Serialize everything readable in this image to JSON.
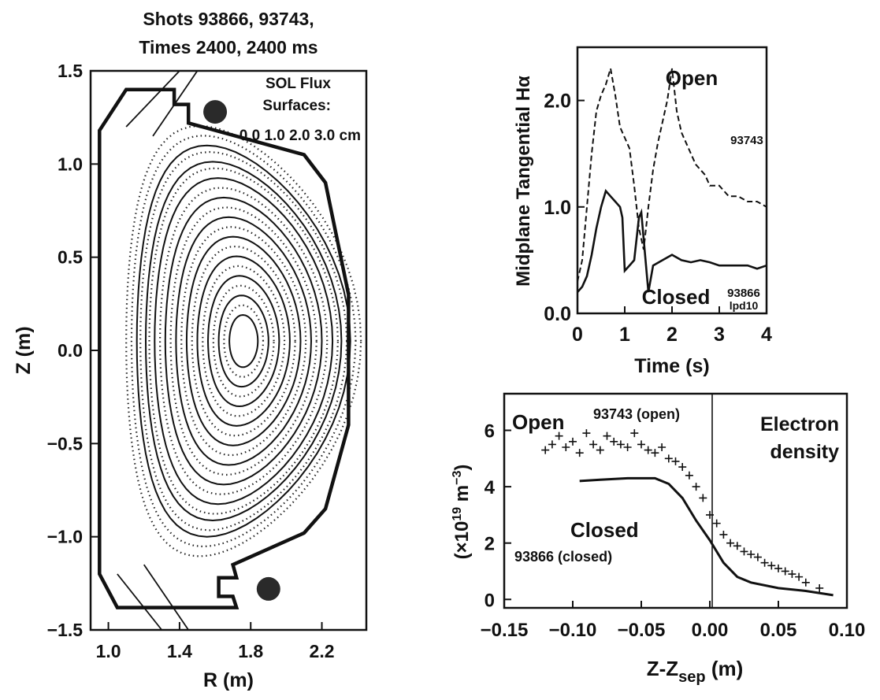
{
  "chart_data": [
    {
      "type": "equilibrium",
      "title_line1": "Shots 93866, 93743,",
      "title_line2": "Times 2400, 2400 ms",
      "xlabel": "R (m)",
      "ylabel": "Z (m)",
      "xlim": [
        0.9,
        2.45
      ],
      "ylim": [
        -1.5,
        1.5
      ],
      "xticks": [
        "1.0",
        "1.4",
        "1.8",
        "2.2"
      ],
      "yticks": [
        "1.5",
        "1.0",
        "0.5",
        "0.0",
        "−0.5",
        "−1.0",
        "−1.5"
      ],
      "annotation": [
        "SOL Flux",
        "Surfaces:",
        "0.0 1.0 2.0 3.0 cm"
      ],
      "magnetic_axis": {
        "R": 1.76,
        "Z": 0.05
      },
      "solid_surfaces_minor_radius": [
        0.08,
        0.14,
        0.2,
        0.26,
        0.32,
        0.38,
        0.44,
        0.5,
        0.55,
        0.6
      ],
      "dotted_surfaces_minor_radius": [
        0.11,
        0.17,
        0.23,
        0.29,
        0.35,
        0.41,
        0.47,
        0.53,
        0.58,
        0.63,
        0.66
      ],
      "coil_markers": [
        {
          "R": 1.6,
          "Z": 1.28
        },
        {
          "R": 1.9,
          "Z": -1.28
        }
      ],
      "wall_outline": [
        [
          0.95,
          1.18
        ],
        [
          1.1,
          1.4
        ],
        [
          1.37,
          1.4
        ],
        [
          1.37,
          1.32
        ],
        [
          1.45,
          1.32
        ],
        [
          1.45,
          1.22
        ],
        [
          2.1,
          1.05
        ],
        [
          2.22,
          0.9
        ],
        [
          2.35,
          0.3
        ],
        [
          2.35,
          -0.4
        ],
        [
          2.22,
          -0.85
        ],
        [
          2.1,
          -0.98
        ],
        [
          1.7,
          -1.15
        ],
        [
          1.72,
          -1.22
        ],
        [
          1.62,
          -1.22
        ],
        [
          1.62,
          -1.32
        ],
        [
          1.7,
          -1.32
        ],
        [
          1.72,
          -1.38
        ],
        [
          1.05,
          -1.38
        ],
        [
          0.95,
          -1.2
        ]
      ]
    },
    {
      "type": "line",
      "ylabel": "Midplane Tangential Hα",
      "xlabel": "Time (s)",
      "xlim": [
        0,
        4
      ],
      "ylim": [
        0,
        2.5
      ],
      "xticks": [
        "0",
        "1",
        "2",
        "3",
        "4"
      ],
      "yticks": [
        "0.0",
        "1.0",
        "2.0"
      ],
      "labels": {
        "open": "Open",
        "closed": "Closed",
        "shot_open": "93743",
        "shot_closed": "93866",
        "diag": "lpd10"
      },
      "series": [
        {
          "name": "93743",
          "style": "dashed",
          "x": [
            0.0,
            0.1,
            0.2,
            0.3,
            0.4,
            0.5,
            0.6,
            0.7,
            0.8,
            0.9,
            1.0,
            1.1,
            1.2,
            1.3,
            1.4,
            1.5,
            1.6,
            1.7,
            1.8,
            1.9,
            2.0,
            2.1,
            2.2,
            2.3,
            2.4,
            2.5,
            2.6,
            2.7,
            2.8,
            2.9,
            3.0,
            3.2,
            3.4,
            3.6,
            3.8,
            4.0
          ],
          "y": [
            0.3,
            0.5,
            1.0,
            1.5,
            1.9,
            2.05,
            2.15,
            2.3,
            2.05,
            1.75,
            1.65,
            1.55,
            1.2,
            0.8,
            0.6,
            1.0,
            1.35,
            1.6,
            1.8,
            2.0,
            2.3,
            1.9,
            1.7,
            1.6,
            1.5,
            1.4,
            1.35,
            1.3,
            1.2,
            1.2,
            1.2,
            1.1,
            1.1,
            1.05,
            1.05,
            1.0
          ]
        },
        {
          "name": "93866",
          "style": "solid",
          "x": [
            0.0,
            0.1,
            0.2,
            0.3,
            0.4,
            0.5,
            0.6,
            0.7,
            0.8,
            0.9,
            0.95,
            1.0,
            1.1,
            1.2,
            1.3,
            1.35,
            1.4,
            1.5,
            1.6,
            1.8,
            2.0,
            2.2,
            2.4,
            2.6,
            2.8,
            3.0,
            3.2,
            3.4,
            3.6,
            3.8,
            4.0
          ],
          "y": [
            0.2,
            0.25,
            0.35,
            0.55,
            0.8,
            1.0,
            1.15,
            1.1,
            1.05,
            1.0,
            0.9,
            0.4,
            0.45,
            0.5,
            0.9,
            0.95,
            0.7,
            0.2,
            0.45,
            0.5,
            0.55,
            0.5,
            0.48,
            0.5,
            0.48,
            0.45,
            0.45,
            0.45,
            0.45,
            0.42,
            0.45
          ]
        }
      ]
    },
    {
      "type": "scatter",
      "ylabel": "(×10¹⁹ m⁻³)",
      "ylabel_main": "(×10",
      "ylabel_exp": "19",
      "ylabel_tail": " m",
      "ylabel_exp2": "−3",
      "ylabel_close": ")",
      "xlabel_main": "Z-Z",
      "xlabel_sub": "sep",
      "xlabel_tail": " (m)",
      "xlim": [
        -0.15,
        0.1
      ],
      "ylim": [
        -0.3,
        7.3
      ],
      "xticks": [
        "−0.15",
        "−0.10",
        "−0.05",
        "0.00",
        "0.05",
        "0.10"
      ],
      "yticks": [
        "0",
        "2",
        "4",
        "6"
      ],
      "labels": {
        "open": "Open",
        "open_shot": "93743 (open)",
        "closed": "Closed",
        "closed_shot": "93866 (closed)",
        "electron1": "Electron",
        "electron2": "density"
      },
      "series": [
        {
          "name": "93866 (closed)",
          "style": "solid",
          "x": [
            -0.095,
            -0.08,
            -0.06,
            -0.04,
            -0.03,
            -0.02,
            -0.01,
            0.0,
            0.01,
            0.02,
            0.03,
            0.05,
            0.07,
            0.09
          ],
          "y": [
            4.2,
            4.25,
            4.3,
            4.3,
            4.1,
            3.6,
            2.8,
            2.1,
            1.3,
            0.8,
            0.6,
            0.4,
            0.3,
            0.15
          ]
        },
        {
          "name": "93743 (open)",
          "style": "markers",
          "x": [
            -0.12,
            -0.115,
            -0.11,
            -0.105,
            -0.1,
            -0.095,
            -0.09,
            -0.085,
            -0.08,
            -0.075,
            -0.07,
            -0.065,
            -0.06,
            -0.055,
            -0.05,
            -0.045,
            -0.04,
            -0.035,
            -0.03,
            -0.025,
            -0.02,
            -0.015,
            -0.01,
            -0.005,
            0.0,
            0.005,
            0.01,
            0.015,
            0.02,
            0.025,
            0.03,
            0.035,
            0.04,
            0.045,
            0.05,
            0.055,
            0.06,
            0.065,
            0.07,
            0.08
          ],
          "y": [
            5.3,
            5.5,
            5.8,
            5.4,
            5.6,
            5.2,
            5.9,
            5.5,
            5.3,
            5.8,
            5.6,
            5.5,
            5.4,
            5.9,
            5.5,
            5.3,
            5.2,
            5.4,
            5.0,
            4.9,
            4.7,
            4.4,
            4.0,
            3.6,
            3.0,
            2.7,
            2.3,
            2.0,
            1.9,
            1.7,
            1.6,
            1.5,
            1.3,
            1.2,
            1.1,
            1.0,
            0.9,
            0.8,
            0.6,
            0.4
          ]
        }
      ]
    }
  ]
}
